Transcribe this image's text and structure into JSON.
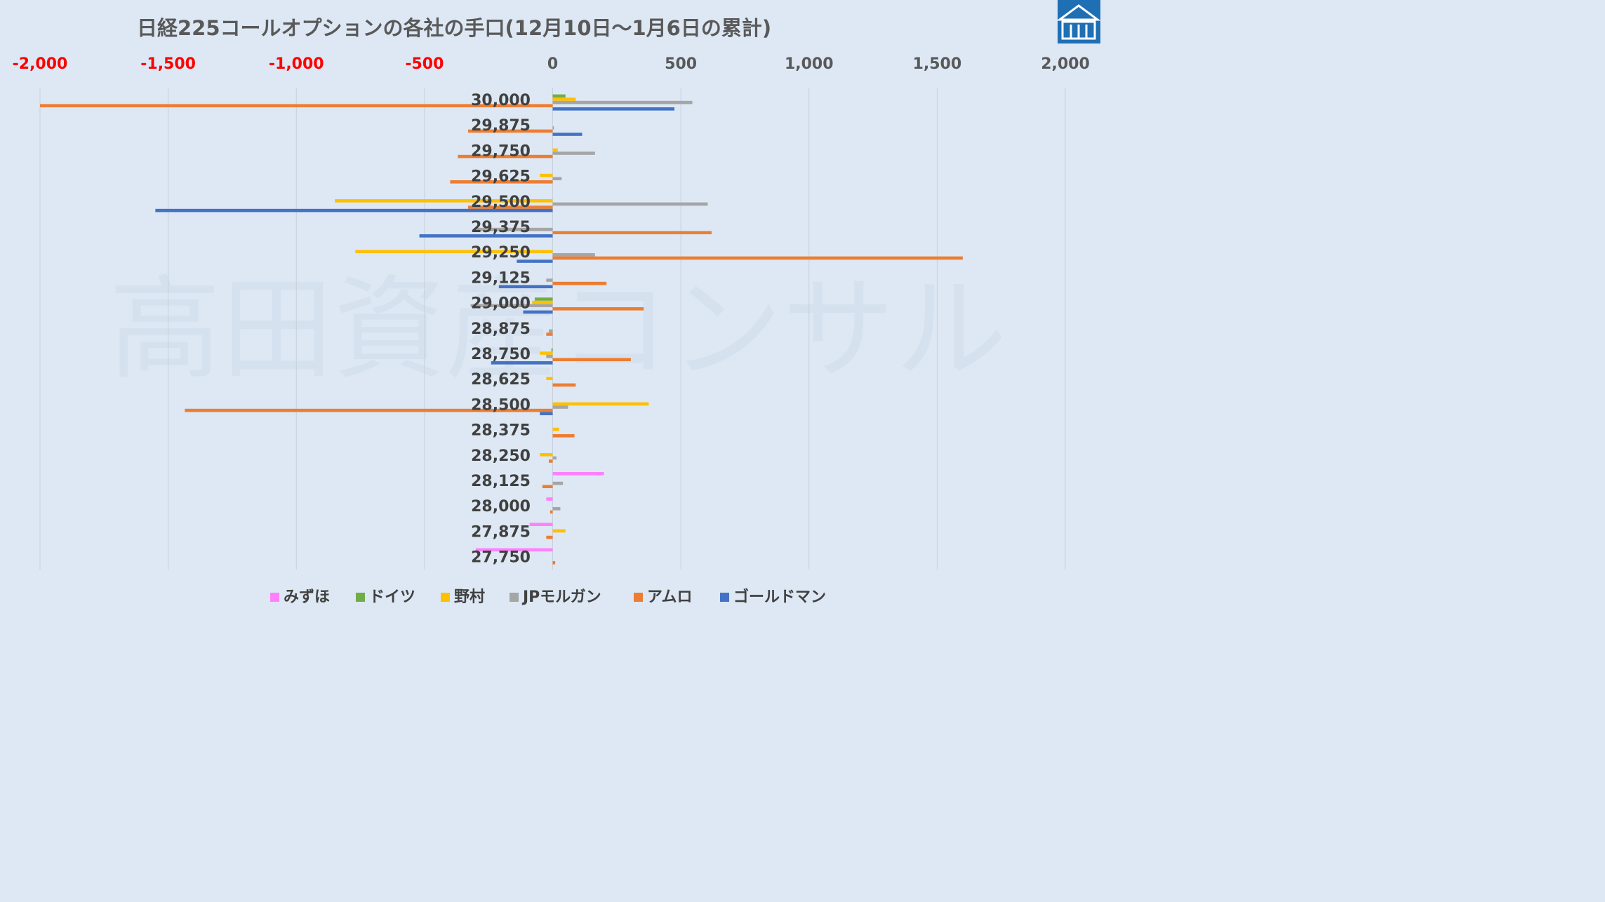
{
  "chart_data": {
    "type": "bar",
    "orientation": "horizontal",
    "title": "日経225コールオプションの各社の手口(12月10日～1月6日の累計)",
    "watermark": "高田資産コンサル",
    "xlim": [
      -2000,
      2000
    ],
    "xticks": [
      -2000,
      -1500,
      -1000,
      -500,
      0,
      500,
      1000,
      1500,
      2000
    ],
    "xtick_labels": [
      "-2,000",
      "-1,500",
      "-1,000",
      "-500",
      "0",
      "500",
      "1,000",
      "1,500",
      "2,000"
    ],
    "negative_tick_color": "#ff0000",
    "positive_tick_color": "#595959",
    "grid": true,
    "legend_position": "bottom",
    "categories": [
      "30,000",
      "29,875",
      "29,750",
      "29,625",
      "29,500",
      "29,375",
      "29,250",
      "29,125",
      "29,000",
      "28,875",
      "28,750",
      "28,625",
      "28,500",
      "28,375",
      "28,250",
      "28,125",
      "28,000",
      "27,875",
      "27,750"
    ],
    "series": [
      {
        "name": "みずほ",
        "color": "#ff80ff",
        "values": [
          0,
          0,
          0,
          0,
          0,
          0,
          0,
          0,
          0,
          0,
          0,
          0,
          0,
          0,
          0,
          200,
          -25,
          -90,
          -300
        ]
      },
      {
        "name": "ドイツ",
        "color": "#70ad47",
        "values": [
          50,
          0,
          0,
          0,
          0,
          0,
          0,
          0,
          -70,
          0,
          -5,
          0,
          0,
          0,
          0,
          0,
          0,
          0,
          0
        ]
      },
      {
        "name": "野村",
        "color": "#ffc000",
        "values": [
          90,
          0,
          20,
          -50,
          -850,
          0,
          -770,
          0,
          -80,
          0,
          -50,
          -25,
          375,
          25,
          -50,
          0,
          0,
          50,
          0
        ]
      },
      {
        "name": "JPモルガン",
        "color": "#a5a5a5",
        "values": [
          545,
          5,
          165,
          35,
          605,
          -300,
          165,
          -25,
          -320,
          -15,
          -25,
          0,
          60,
          0,
          15,
          40,
          30,
          0,
          0
        ]
      },
      {
        "name": "アムロ",
        "color": "#ed7d31",
        "values": [
          -2000,
          -330,
          -370,
          -400,
          -330,
          620,
          1600,
          210,
          355,
          -25,
          305,
          90,
          -1435,
          85,
          -15,
          -40,
          -10,
          -25,
          10
        ]
      },
      {
        "name": "ゴールドマン",
        "color": "#4472c4",
        "values": [
          475,
          115,
          0,
          0,
          -1550,
          -520,
          -140,
          -210,
          -115,
          0,
          -240,
          0,
          -50,
          0,
          0,
          0,
          0,
          0,
          0
        ]
      }
    ]
  }
}
